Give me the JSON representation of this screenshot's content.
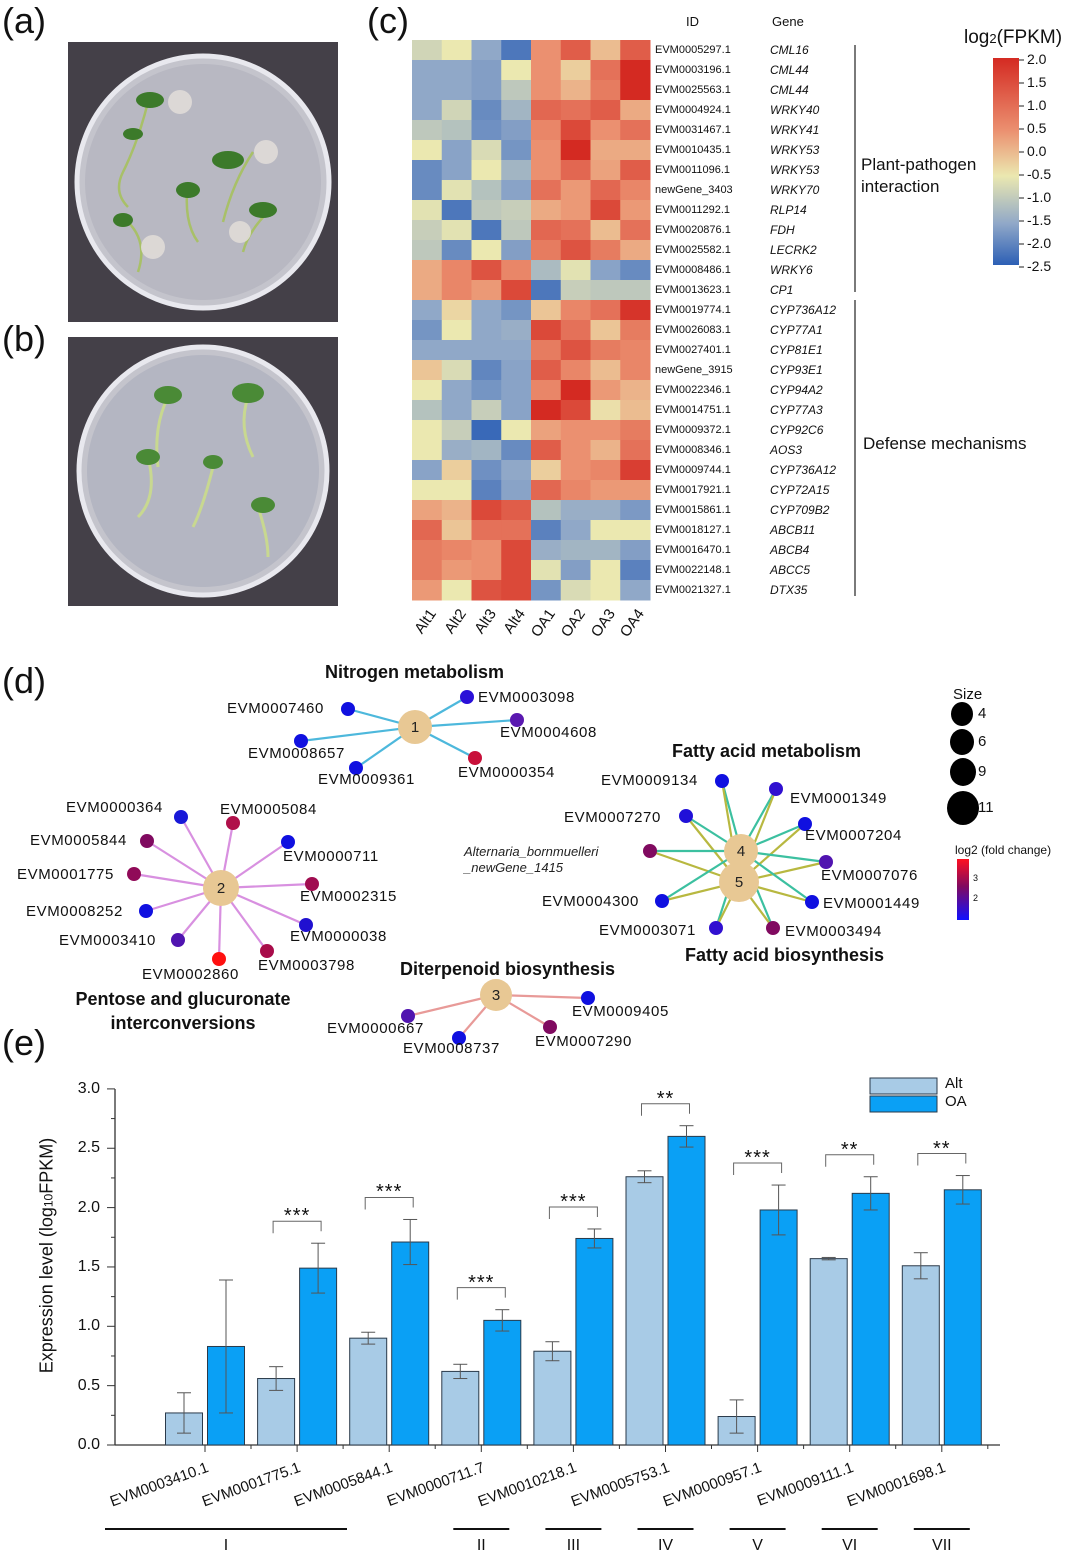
{
  "panels": {
    "a": "(a)",
    "b": "(b)",
    "c": "(c)",
    "d": "(d)",
    "e": "(e)"
  },
  "heatmap": {
    "header_id": "ID",
    "header_gene": "Gene",
    "columns": [
      "Alt1",
      "Alt2",
      "Alt3",
      "Alt4",
      "OA1",
      "OA2",
      "OA3",
      "OA4"
    ],
    "legend_title": "log2(FPKM)",
    "legend_ticks": [
      "2.0",
      "1.5",
      "1.0",
      "0.5",
      "0.0",
      "-0.5",
      "-1.0",
      "-1.5",
      "-2.0",
      "-2.5"
    ],
    "scale_range": [
      -2.5,
      2.0
    ],
    "colors": {
      "low": "#2c5fb5",
      "mid": "#ebe8b0",
      "high": "#d42a22"
    },
    "categories": [
      {
        "label_line1": "Plant-pathogen",
        "label_line2": "interaction"
      },
      {
        "label_line1": "Defense mechanisms",
        "label_line2": ""
      }
    ],
    "rows": [
      {
        "id": "EVM0005297.1",
        "gene": "CML16",
        "values": [
          -0.3,
          0,
          -1,
          -2,
          1,
          1.5,
          0.5,
          1.5
        ]
      },
      {
        "id": "EVM0003196.1",
        "gene": "CML44",
        "values": [
          -1,
          -1,
          -1.2,
          0,
          1,
          0.3,
          1.3,
          2
        ]
      },
      {
        "id": "EVM0025563.1",
        "gene": "CML44",
        "values": [
          -1,
          -1,
          -1.2,
          -0.5,
          1,
          0.6,
          1.2,
          2
        ]
      },
      {
        "id": "EVM0004924.1",
        "gene": "WRKY40",
        "values": [
          -1,
          -0.3,
          -1.6,
          -0.8,
          1.4,
          1.3,
          1.5,
          0.7
        ]
      },
      {
        "id": "EVM0031467.1",
        "gene": "WRKY41",
        "values": [
          -0.5,
          -0.6,
          -1.5,
          -1.2,
          1.1,
          1.7,
          1.0,
          1.3
        ]
      },
      {
        "id": "EVM0010435.1",
        "gene": "WRKY53",
        "values": [
          0,
          -1.1,
          -0.2,
          -1.4,
          1.0,
          2.0,
          0.7,
          0.7
        ]
      },
      {
        "id": "EVM0011096.1",
        "gene": "WRKY53",
        "values": [
          -1.6,
          -1.1,
          0,
          -0.8,
          1.0,
          1.4,
          0.8,
          1.5
        ]
      },
      {
        "id": "newGene_3403",
        "gene": "WRKY70",
        "values": [
          -1.6,
          -0.1,
          -0.6,
          -1.1,
          1.3,
          0.9,
          1.4,
          1.1
        ]
      },
      {
        "id": "EVM0011292.1",
        "gene": "RLP14",
        "values": [
          -0.1,
          -2.0,
          -0.5,
          -0.4,
          0.7,
          0.9,
          1.7,
          0.9
        ]
      },
      {
        "id": "EVM0020876.1",
        "gene": "FDH",
        "values": [
          -0.4,
          -0.1,
          -2.0,
          -0.5,
          1.4,
          1.3,
          0.5,
          1.3
        ]
      },
      {
        "id": "EVM0025582.1",
        "gene": "LECRK2",
        "values": [
          -0.5,
          -1.6,
          0,
          -1.2,
          1.2,
          1.6,
          1.2,
          0.7
        ]
      },
      {
        "id": "EVM0008486.1",
        "gene": "WRKY6",
        "values": [
          0.7,
          1.1,
          1.6,
          1.1,
          -0.7,
          -0.1,
          -1.1,
          -1.6
        ]
      },
      {
        "id": "EVM0013623.1",
        "gene": "CP1",
        "values": [
          0.7,
          1.1,
          0.9,
          1.7,
          -2.0,
          -0.4,
          -0.5,
          -0.5
        ]
      },
      {
        "id": "EVM0019774.1",
        "gene": "CYP736A12",
        "values": [
          -1.0,
          0.2,
          -1.0,
          -1.4,
          0.4,
          1.1,
          1.3,
          1.9
        ]
      },
      {
        "id": "EVM0026083.1",
        "gene": "CYP77A1",
        "values": [
          -1.4,
          0,
          -1.0,
          -0.9,
          1.7,
          1.3,
          0.4,
          1.2
        ]
      },
      {
        "id": "EVM0027401.1",
        "gene": "CYP81E1",
        "values": [
          -1,
          -1,
          -1,
          -1,
          1.2,
          1.6,
          1.2,
          1.1
        ]
      },
      {
        "id": "newGene_3915",
        "gene": "CYP93E1",
        "values": [
          0.4,
          -0.2,
          -1.7,
          -1.1,
          1.5,
          1.1,
          0.5,
          1.1
        ]
      },
      {
        "id": "EVM0022346.1",
        "gene": "CYP94A2",
        "values": [
          0,
          -1,
          -1.4,
          -1.1,
          1.1,
          2.0,
          0.9,
          0.6
        ]
      },
      {
        "id": "EVM0014751.1",
        "gene": "CYP77A3",
        "values": [
          -0.6,
          -1,
          -0.4,
          -1.1,
          2.0,
          1.7,
          0.1,
          0.5
        ]
      },
      {
        "id": "EVM0009372.1",
        "gene": "CYP92C6",
        "values": [
          0,
          -0.4,
          -2.3,
          0,
          0.8,
          1.0,
          1.0,
          1.2
        ]
      },
      {
        "id": "EVM0008346.1",
        "gene": "AOS3",
        "values": [
          0,
          -0.9,
          -0.8,
          -1.6,
          1.5,
          1.0,
          0.6,
          1.3
        ]
      },
      {
        "id": "EVM0009744.1",
        "gene": "CYP736A12",
        "values": [
          -1.1,
          0.3,
          -1.5,
          -1.0,
          0.3,
          1.0,
          1.1,
          1.8
        ]
      },
      {
        "id": "EVM0017921.1",
        "gene": "CYP72A15",
        "values": [
          0,
          0,
          -1.8,
          -1.1,
          1.4,
          1.1,
          0.9,
          0.9
        ]
      },
      {
        "id": "EVM0015861.1",
        "gene": "CYP709B2",
        "values": [
          0.8,
          0.6,
          1.7,
          1.5,
          -0.6,
          -0.9,
          -0.9,
          -1.3
        ]
      },
      {
        "id": "EVM0018127.1",
        "gene": "ABCB11",
        "values": [
          1.4,
          0.4,
          1.3,
          1.3,
          -1.8,
          -1.0,
          0,
          0
        ]
      },
      {
        "id": "EVM0016470.1",
        "gene": "ABCB4",
        "values": [
          1.2,
          1.1,
          1.0,
          1.7,
          -0.9,
          -0.8,
          -0.8,
          -1.2
        ]
      },
      {
        "id": "EVM0022148.1",
        "gene": "ABCC5",
        "values": [
          1.2,
          0.9,
          1.0,
          1.7,
          -0.1,
          -1.2,
          0,
          -1.8
        ]
      },
      {
        "id": "EVM0021327.1",
        "gene": "DTX35",
        "values": [
          0.9,
          0,
          1.6,
          1.7,
          -1.4,
          -0.2,
          0,
          -1.0
        ]
      }
    ]
  },
  "network": {
    "edge_colors": {
      "1": "#4db8dc",
      "2": "#d890e0",
      "3": "#e89a98",
      "4": "#3cc0a0",
      "5": "#b8b840"
    },
    "hub_color": "#e8c894",
    "titles": {
      "m1": "Nitrogen metabolism",
      "m2_line1": "Pentose and glucuronate",
      "m2_line2": "interconversions",
      "m3": "Diterpenoid biosynthesis",
      "m4": "Fatty acid metabolism",
      "m5": "Fatty acid biosynthesis"
    },
    "hubs": [
      "1",
      "2",
      "3",
      "4",
      "5"
    ],
    "genes": [
      {
        "name": "EVM0007460",
        "module": "1",
        "color": "#1010e0"
      },
      {
        "name": "EVM0003098",
        "module": "1",
        "color": "#2a10d8"
      },
      {
        "name": "EVM0004608",
        "module": "1",
        "color": "#5a18b0"
      },
      {
        "name": "EVM0008657",
        "module": "1",
        "color": "#1010e0"
      },
      {
        "name": "EVM0009361",
        "module": "1",
        "color": "#1010e0"
      },
      {
        "name": "EVM0000354",
        "module": "1",
        "color": "#c8103a"
      },
      {
        "name": "EVM0000364",
        "module": "2",
        "color": "#1818d8"
      },
      {
        "name": "EVM0005084",
        "module": "2",
        "color": "#b0104a"
      },
      {
        "name": "EVM0005844",
        "module": "2",
        "color": "#800a60"
      },
      {
        "name": "EVM0000711",
        "module": "2",
        "color": "#1010e0"
      },
      {
        "name": "EVM0001775",
        "module": "2",
        "color": "#900a58"
      },
      {
        "name": "EVM0002315",
        "module": "2",
        "color": "#a00c50"
      },
      {
        "name": "EVM0008252",
        "module": "2",
        "color": "#1010e0"
      },
      {
        "name": "EVM0000038",
        "module": "2",
        "color": "#2010d0"
      },
      {
        "name": "EVM0003410",
        "module": "2",
        "color": "#5014b0"
      },
      {
        "name": "EVM0003798",
        "module": "2",
        "color": "#a80c4a"
      },
      {
        "name": "EVM0002860",
        "module": "2",
        "color": "#ff1010"
      },
      {
        "name": "EVM0000667",
        "module": "3",
        "color": "#5014b0"
      },
      {
        "name": "EVM0008737",
        "module": "3",
        "color": "#1010e0"
      },
      {
        "name": "EVM0009405",
        "module": "3",
        "color": "#1010e0"
      },
      {
        "name": "EVM0007290",
        "module": "3",
        "color": "#800a60"
      },
      {
        "name": "EVM0009134",
        "module": "45",
        "color": "#1010e0"
      },
      {
        "name": "EVM0001349",
        "module": "45",
        "color": "#3010d0"
      },
      {
        "name": "EVM0007270",
        "module": "45",
        "color": "#2010d8"
      },
      {
        "name": "EVM0007204",
        "module": "45",
        "color": "#1010e0"
      },
      {
        "name": "Alternaria_bornmuelleri",
        "name2": "_newGene_1415",
        "module": "45",
        "color": "#800a60"
      },
      {
        "name": "EVM0007076",
        "module": "45",
        "color": "#5014b0"
      },
      {
        "name": "EVM0004300",
        "module": "45",
        "color": "#1010e0"
      },
      {
        "name": "EVM0001449",
        "module": "45",
        "color": "#1010e0"
      },
      {
        "name": "EVM0003071",
        "module": "45",
        "color": "#3010d0"
      },
      {
        "name": "EVM0003494",
        "module": "45",
        "color": "#800a60"
      }
    ],
    "size_legend": {
      "title": "Size",
      "values": [
        "4",
        "6",
        "9",
        "11"
      ]
    },
    "color_legend": {
      "title": "log2 (fold change)",
      "ticks": [
        "3",
        "2"
      ]
    }
  },
  "chart_data": {
    "type": "bar",
    "ylabel": "Expression level (log10FPKM)",
    "ylabel_main": "Expression level (log",
    "ylabel_sub": "10",
    "ylabel_end": "FPKM)",
    "ylim": [
      0,
      3.0
    ],
    "yticks": [
      "0.0",
      "0.5",
      "1.0",
      "1.5",
      "2.0",
      "2.5",
      "3.0"
    ],
    "categories": [
      "EVM0003410.1",
      "EVM0001775.1",
      "EVM0005844.1",
      "EVM0000711.7",
      "EVM0010218.1",
      "EVM0005753.1",
      "EVM0000957.1",
      "EVM0009111.1",
      "EVM0001698.1"
    ],
    "series": [
      {
        "name": "Alt",
        "color": "#a8cbe6",
        "values": [
          0.27,
          0.56,
          0.9,
          0.62,
          0.79,
          2.26,
          0.24,
          1.57,
          1.51
        ],
        "errors": [
          0.17,
          0.1,
          0.05,
          0.06,
          0.08,
          0.05,
          0.14,
          0.01,
          0.11
        ]
      },
      {
        "name": "OA",
        "color": "#0aa0f5",
        "values": [
          0.83,
          1.49,
          1.71,
          1.05,
          1.74,
          2.6,
          1.98,
          2.12,
          2.15
        ],
        "errors": [
          0.56,
          0.21,
          0.19,
          0.09,
          0.08,
          0.09,
          0.21,
          0.14,
          0.12
        ]
      }
    ],
    "significance": [
      "",
      "***",
      "***",
      "***",
      "***",
      "**",
      "***",
      "**",
      "**"
    ],
    "groups": [
      {
        "label": "I",
        "from": 0,
        "to": 2
      },
      {
        "label": "II",
        "from": 3,
        "to": 3
      },
      {
        "label": "III",
        "from": 4,
        "to": 4
      },
      {
        "label": "IV",
        "from": 5,
        "to": 5
      },
      {
        "label": "V",
        "from": 6,
        "to": 6
      },
      {
        "label": "VI",
        "from": 7,
        "to": 7
      },
      {
        "label": "VII",
        "from": 8,
        "to": 8
      }
    ],
    "legend": "top-right"
  }
}
